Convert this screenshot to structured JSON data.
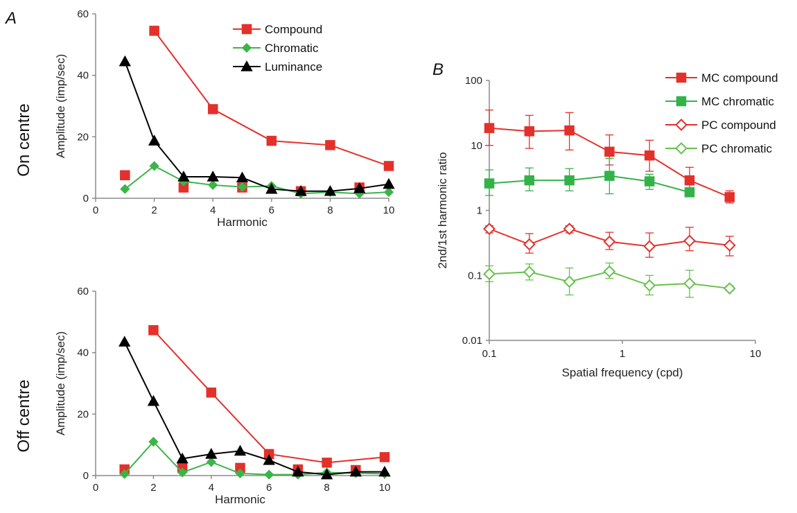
{
  "figure": {
    "panel_labels": [
      "A",
      "B"
    ],
    "row_labels": [
      "On centre",
      "Off centre"
    ]
  },
  "colors": {
    "compound": "#e4302b",
    "chromatic_A": "#3cb44a",
    "luminance": "#000000",
    "mc_compound": "#e4302b",
    "mc_chromatic": "#33b24a",
    "pc_compound": "#e4302b",
    "pc_chromatic": "#66c24a",
    "axis": "#8a8a8a"
  },
  "chart_data": [
    {
      "id": "on-centre",
      "type": "line",
      "xlabel": "Harmonic",
      "ylabel": "Amplitude (imp/sec)",
      "xlim": [
        0,
        10
      ],
      "ylim": [
        0,
        60
      ],
      "xticks": [
        0,
        2,
        4,
        6,
        8,
        10
      ],
      "yticks": [
        0,
        20,
        40,
        60
      ],
      "legend": {
        "position": "top-right",
        "entries": [
          "Compound",
          "Chromatic",
          "Luminance"
        ]
      },
      "series": [
        {
          "name": "Compound",
          "color_key": "compound",
          "marker": "square",
          "x": [
            1,
            2,
            3,
            4,
            5,
            6,
            7,
            8,
            9,
            10
          ],
          "y": [
            7.5,
            54.5,
            3.5,
            29,
            3.5,
            18.7,
            2.3,
            17.3,
            3.5,
            10.5
          ],
          "line_segments": [
            [
              2,
              4,
              6,
              8,
              10
            ]
          ]
        },
        {
          "name": "Chromatic",
          "color_key": "chromatic_A",
          "marker": "diamond",
          "x": [
            1,
            2,
            3,
            4,
            5,
            6,
            7,
            8,
            9,
            10
          ],
          "y": [
            3,
            10.5,
            5.5,
            4.3,
            3.7,
            4,
            1.5,
            2,
            1.5,
            2
          ],
          "line_segments": [
            [
              1,
              2,
              3,
              4,
              5,
              6,
              7,
              8,
              9,
              10
            ]
          ]
        },
        {
          "name": "Luminance",
          "color_key": "luminance",
          "marker": "triangle",
          "x": [
            1,
            2,
            3,
            4,
            5,
            6,
            7,
            8,
            9,
            10
          ],
          "y": [
            44.5,
            18.7,
            7,
            7,
            6.7,
            3,
            2.3,
            2.3,
            3.2,
            4.6
          ],
          "line_segments": [
            [
              1,
              2,
              3,
              4,
              5,
              6,
              7,
              8,
              9,
              10
            ]
          ]
        }
      ]
    },
    {
      "id": "off-centre",
      "type": "line",
      "xlabel": "Harmonic",
      "ylabel": "Amplitude (imp/sec)",
      "xlim": [
        0,
        10
      ],
      "ylim": [
        0,
        60
      ],
      "xticks": [
        0,
        2,
        4,
        6,
        8,
        10
      ],
      "yticks": [
        0,
        20,
        40,
        60
      ],
      "series": [
        {
          "name": "Compound",
          "color_key": "compound",
          "marker": "square",
          "x": [
            1,
            2,
            3,
            4,
            5,
            6,
            7,
            8,
            9,
            10
          ],
          "y": [
            2,
            47.3,
            2.5,
            27,
            2.5,
            7,
            2,
            4.2,
            1.8,
            6
          ],
          "line_segments": [
            [
              2,
              4,
              6,
              8,
              10
            ]
          ]
        },
        {
          "name": "Chromatic",
          "color_key": "chromatic_A",
          "marker": "diamond",
          "x": [
            1,
            2,
            3,
            4,
            5,
            6,
            7,
            8,
            9,
            10
          ],
          "y": [
            0.5,
            11,
            1,
            4.4,
            0.7,
            0.3,
            0.3,
            1,
            0.8,
            0.6
          ],
          "line_segments": [
            [
              1,
              2,
              3,
              4,
              5,
              6,
              7,
              8,
              9,
              10
            ]
          ]
        },
        {
          "name": "Luminance",
          "color_key": "luminance",
          "marker": "triangle",
          "x": [
            1,
            2,
            3,
            4,
            5,
            6,
            7,
            8,
            9,
            10
          ],
          "y": [
            43.5,
            24.2,
            5.5,
            7,
            8,
            5,
            1.2,
            0.3,
            1.2,
            1.2
          ],
          "line_segments": [
            [
              1,
              2,
              3,
              4,
              5,
              6,
              7,
              8,
              9,
              10
            ]
          ]
        }
      ]
    },
    {
      "id": "harmonic-ratio",
      "type": "line",
      "xlabel": "Spatial frequency (cpd)",
      "ylabel": "2nd/1st harmonic ratio",
      "xscale": "log",
      "yscale": "log",
      "xlim": [
        0.1,
        10
      ],
      "ylim": [
        0.01,
        100
      ],
      "xticks": [
        0.1,
        1,
        10
      ],
      "xtick_labels": [
        "0.1",
        "1",
        "10"
      ],
      "yticks": [
        0.01,
        0.1,
        1,
        10,
        100
      ],
      "ytick_labels": [
        "0.01",
        "0.1",
        "1",
        "10",
        "100"
      ],
      "legend": {
        "position": "top-right",
        "entries": [
          "MC compound",
          "MC chromatic",
          "PC compound",
          "PC chromatic"
        ]
      },
      "series": [
        {
          "name": "MC compound",
          "color_key": "mc_compound",
          "marker": "square",
          "filled": true,
          "x": [
            0.1,
            0.2,
            0.4,
            0.8,
            1.6,
            3.2,
            6.4
          ],
          "y": [
            18.5,
            16.5,
            17,
            8,
            7,
            2.9,
            1.6
          ],
          "err_hi": [
            35,
            29,
            32,
            14.5,
            12,
            4.6,
            2.0
          ],
          "err_lo": [
            10,
            9,
            8.5,
            5.0,
            4.0,
            2.0,
            1.3
          ]
        },
        {
          "name": "MC chromatic",
          "color_key": "mc_chromatic",
          "marker": "square",
          "filled": true,
          "x": [
            0.1,
            0.2,
            0.4,
            0.8,
            1.6,
            3.2
          ],
          "y": [
            2.6,
            2.9,
            2.9,
            3.4,
            2.8,
            1.9
          ],
          "err_hi": [
            4.2,
            4.5,
            4.4,
            6.3,
            3.6,
            2.0
          ],
          "err_lo": [
            1.7,
            2.0,
            2.0,
            1.8,
            2.1,
            1.8
          ]
        },
        {
          "name": "PC compound",
          "color_key": "pc_compound",
          "marker": "diamond",
          "filled": false,
          "x": [
            0.1,
            0.2,
            0.4,
            0.8,
            1.6,
            3.2,
            6.4
          ],
          "y": [
            0.52,
            0.3,
            0.52,
            0.33,
            0.28,
            0.34,
            0.29
          ],
          "err_hi": [
            0.58,
            0.44,
            0.58,
            0.46,
            0.45,
            0.55,
            0.4
          ],
          "err_lo": [
            0.45,
            0.22,
            0.45,
            0.25,
            0.19,
            0.24,
            0.2
          ]
        },
        {
          "name": "PC chromatic",
          "color_key": "pc_chromatic",
          "marker": "diamond",
          "filled": false,
          "x": [
            0.1,
            0.2,
            0.4,
            0.8,
            1.6,
            3.2,
            6.4
          ],
          "y": [
            0.105,
            0.113,
            0.08,
            0.115,
            0.07,
            0.075,
            0.063
          ],
          "err_hi": [
            0.14,
            0.15,
            0.13,
            0.155,
            0.1,
            0.12,
            0.069
          ],
          "err_lo": [
            0.08,
            0.085,
            0.05,
            0.09,
            0.05,
            0.046,
            0.058
          ]
        }
      ]
    }
  ]
}
